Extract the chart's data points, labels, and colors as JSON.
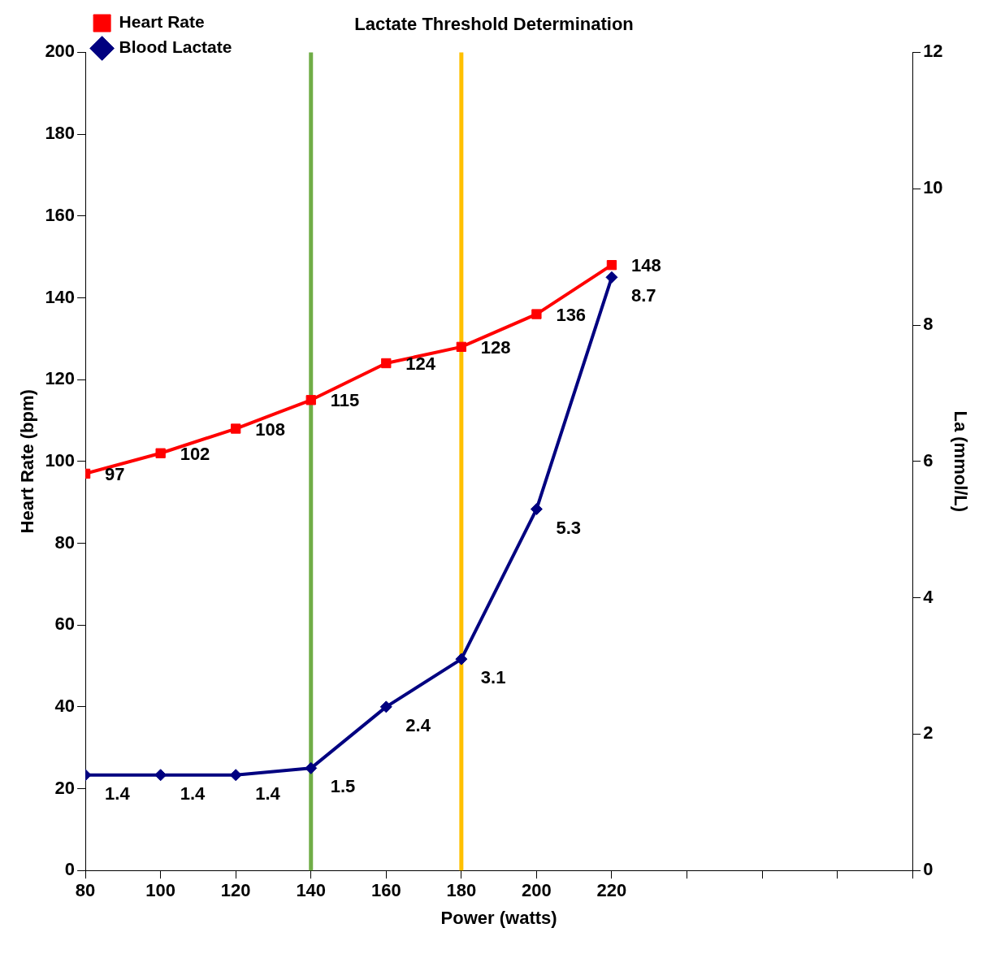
{
  "chart_data": {
    "type": "line",
    "title": "Lactate Threshold Determination",
    "xlabel": "Power (watts)",
    "ylabel": "Heart Rate (bpm)",
    "y2label": "La (mmol/L)",
    "x": [
      80,
      100,
      120,
      140,
      160,
      180,
      200,
      220
    ],
    "series": [
      {
        "name": "Heart Rate",
        "color": "#ff0000",
        "marker": "square",
        "values": [
          97,
          102,
          108,
          115,
          124,
          128,
          136,
          148
        ]
      },
      {
        "name": "Blood Lactate",
        "color": "#000080",
        "marker": "diamond",
        "axis": "y2",
        "values": [
          1.4,
          1.4,
          1.4,
          1.5,
          2.4,
          3.1,
          5.3,
          8.7
        ]
      }
    ],
    "xlim": [
      80,
      300
    ],
    "xticks": [
      80,
      100,
      120,
      140,
      160,
      180,
      200,
      220,
      {
        "value": 240,
        "label": null
      },
      {
        "value": 260,
        "label": null
      },
      {
        "value": 280,
        "label": null
      },
      {
        "value": 300,
        "label": null
      }
    ],
    "ylim": [
      0,
      200
    ],
    "yticks": [
      0,
      20,
      40,
      60,
      80,
      100,
      120,
      140,
      160,
      180,
      200
    ],
    "y2lim": [
      0,
      12
    ],
    "y2ticks": [
      0,
      2,
      4,
      6,
      8,
      10,
      12
    ],
    "ref_lines": [
      {
        "axis": "x",
        "value": 140,
        "color": "#70ad47"
      },
      {
        "axis": "x",
        "value": 180,
        "color": "#ffc000"
      }
    ],
    "data_labels": true,
    "grid": false,
    "legend": "top left",
    "line_style": "solid"
  }
}
